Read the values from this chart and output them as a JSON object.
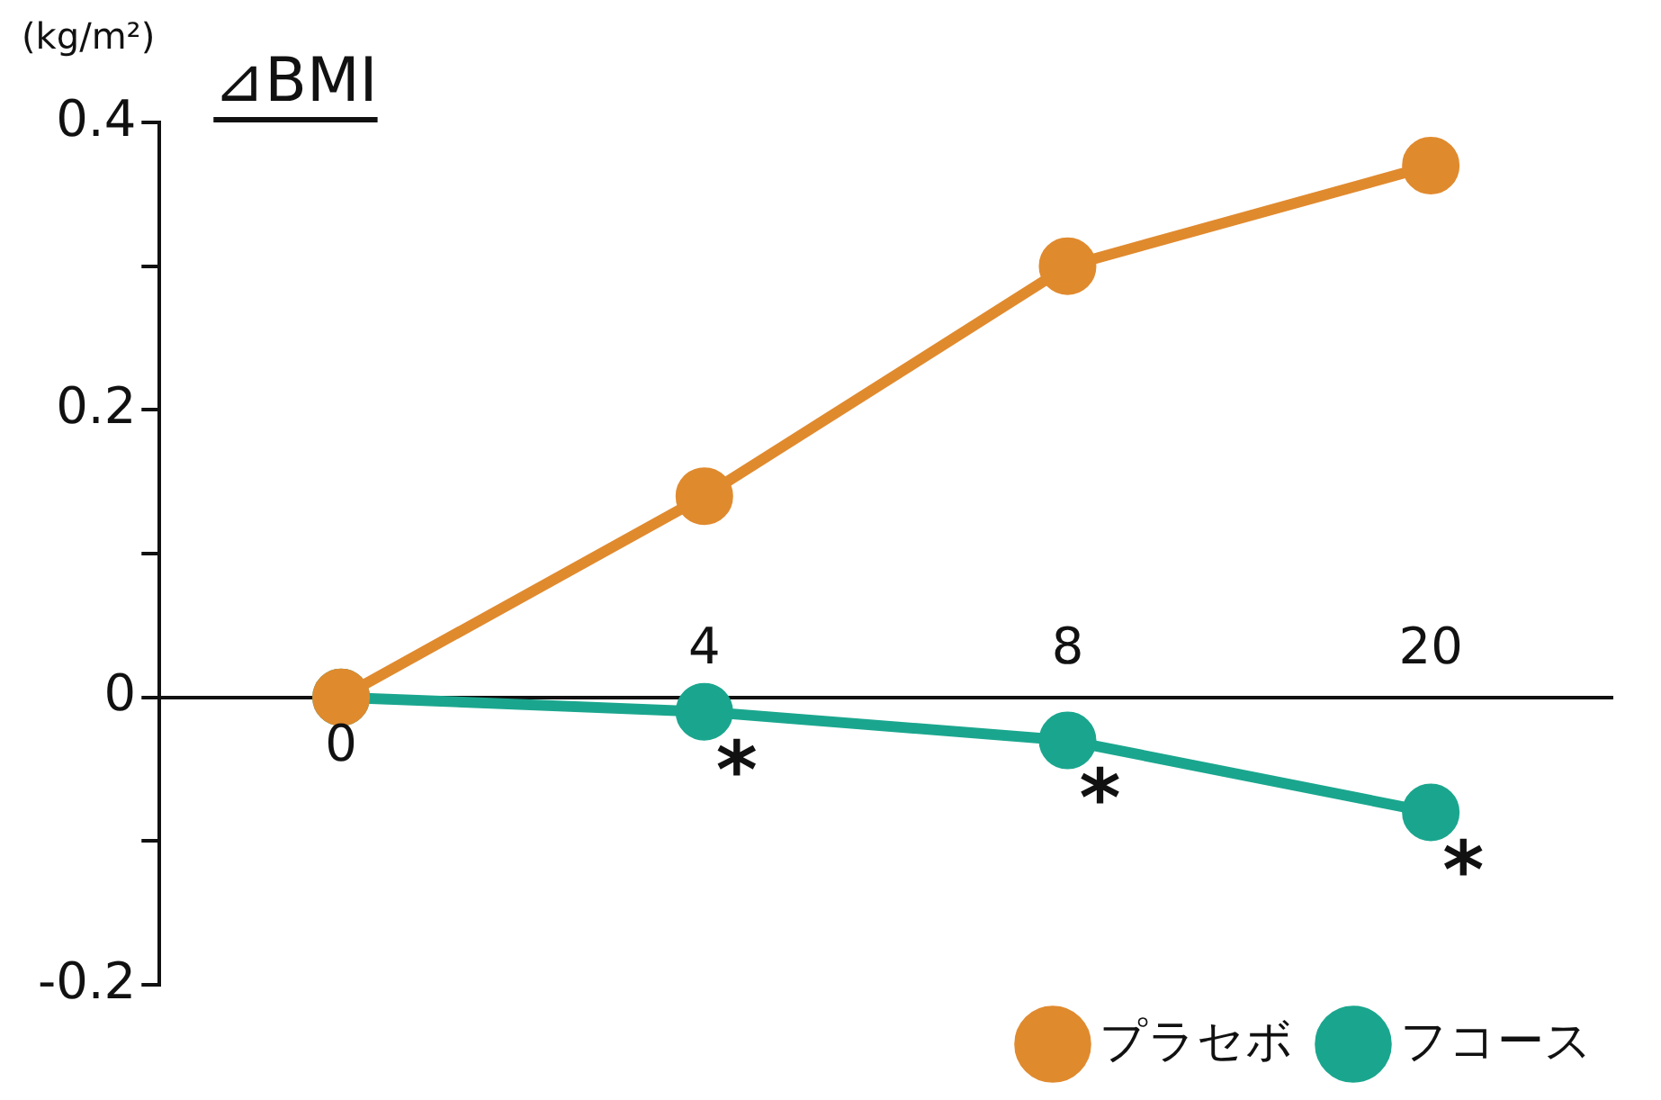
{
  "chart_data": {
    "type": "line",
    "ylabel": "⊿BMI",
    "categories": [
      "0",
      "4",
      "8",
      "20"
    ],
    "series": [
      {
        "name": "プラセボ",
        "color": "#e08a2e",
        "values": [
          0,
          0.14,
          0.3,
          0.37
        ]
      },
      {
        "name": "フコース",
        "color": "#1aa68e",
        "values": [
          0,
          -0.01,
          -0.03,
          -0.08
        ]
      }
    ],
    "ylim": [
      -0.2,
      0.4
    ],
    "yticks": [
      -0.2,
      {
        "value": -0.1,
        "label": null
      },
      0,
      {
        "value": 0.1,
        "label": null
      },
      0.2,
      {
        "value": 0.3,
        "label": null
      },
      0.4
    ],
    "grid": false,
    "legend": "bottom right",
    "marker": "circle",
    "line_style": "solid",
    "annotations": [
      "(kg/m²)",
      {
        "text": "*",
        "x": "4",
        "y": -0.01
      },
      {
        "text": "*",
        "x": "8",
        "y": -0.03
      },
      {
        "text": "*",
        "x": "20",
        "y": -0.08
      }
    ]
  }
}
